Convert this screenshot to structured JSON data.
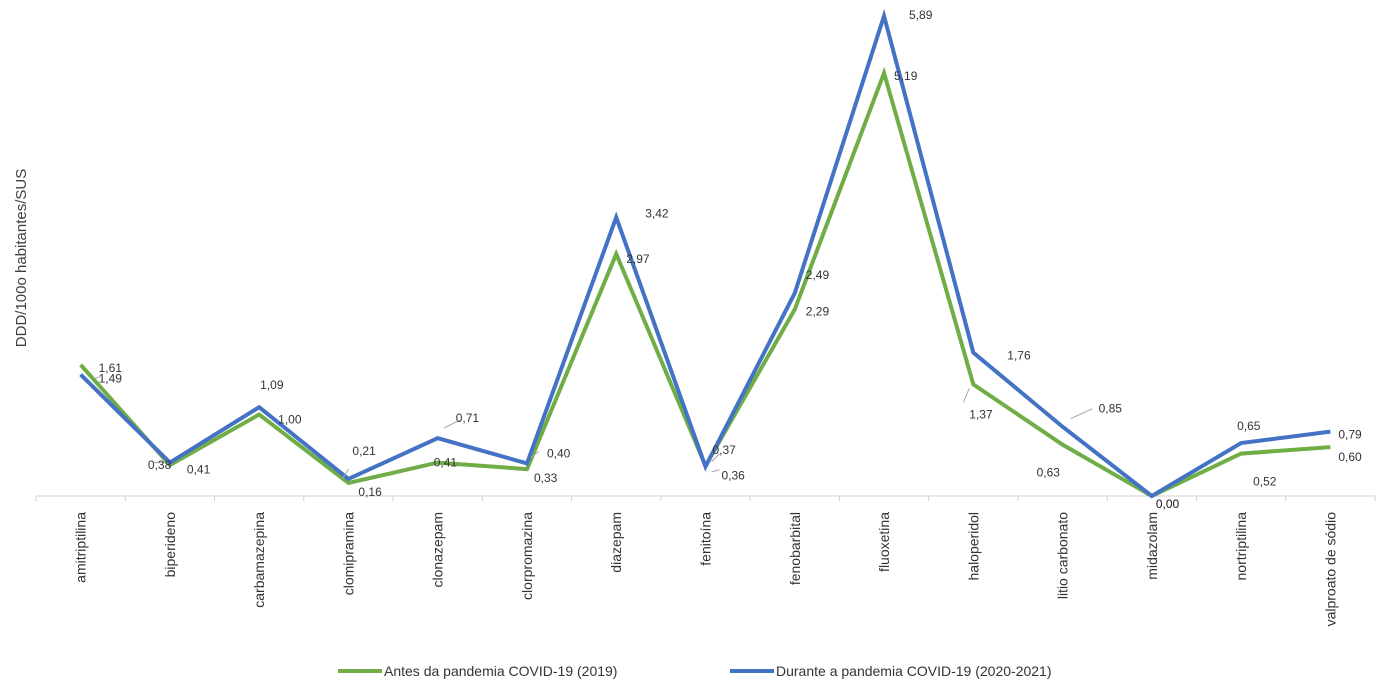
{
  "chart_data": {
    "type": "line",
    "ylabel": "DDD/100o habitantes/SUS",
    "xlabel": "",
    "categories": [
      "amitriptilina",
      "biperideno",
      "carbamazepina",
      "clomipramina",
      "clonazepam",
      "clorpromazina",
      "diazepam",
      "fenitoína",
      "fenobarbital",
      "fluoxetina",
      "haloperidol",
      "litio carbonato",
      "midazolam",
      "nortriptilina",
      "valproato de sódio"
    ],
    "ylim": [
      0,
      5.89
    ],
    "grid": false,
    "legend_position": "bottom",
    "series": [
      {
        "name": "Antes da pandemia COVID-19 (2019)",
        "color": "#70AD47",
        "values": [
          1.61,
          0.38,
          1.0,
          0.16,
          0.41,
          0.33,
          2.97,
          0.37,
          2.29,
          5.19,
          1.37,
          0.63,
          0.0,
          0.52,
          0.6
        ],
        "labels": [
          "1,61",
          "0,38",
          "1,00",
          "0,16",
          "0,41",
          "0,33",
          "2,97",
          "0,37",
          "2,29",
          "5,19",
          "1,37",
          "0,63",
          "0,00",
          "0,52",
          "0,60"
        ]
      },
      {
        "name": "Durante a pandemia COVID-19 (2020-2021)",
        "color": "#4472C4",
        "values": [
          1.49,
          0.41,
          1.09,
          0.21,
          0.71,
          0.4,
          3.42,
          0.36,
          2.49,
          5.89,
          1.76,
          0.85,
          0.0,
          0.65,
          0.79
        ],
        "labels": [
          "1,49",
          "0,41",
          "1,09",
          "0,21",
          "0,71",
          "0,40",
          "3,42",
          "0,36",
          "2,49",
          "5,89",
          "1,76",
          "0,85",
          "0,00",
          "0,65",
          "0,79"
        ]
      }
    ]
  }
}
